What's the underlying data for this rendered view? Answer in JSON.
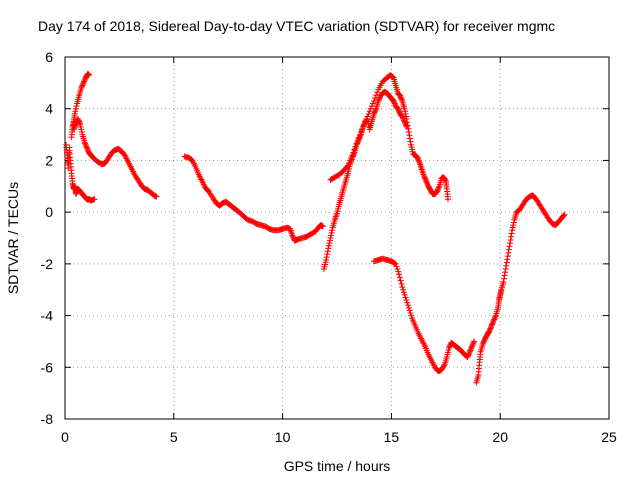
{
  "chart_data": {
    "type": "scatter",
    "title": "Day 174 of 2018, Sidereal Day-to-day VTEC variation (SDTVAR) for receiver mgmc",
    "xlabel": "GPS time / hours",
    "ylabel": "SDTVAR / TECUs",
    "xlim": [
      0,
      25
    ],
    "ylim": [
      -8,
      6
    ],
    "x_ticks": [
      "0",
      "5",
      "10",
      "15",
      "20",
      "25"
    ],
    "y_ticks": [
      "-8",
      "-6",
      "-4",
      "-2",
      "0",
      "2",
      "4",
      "6"
    ],
    "grid": true,
    "marker": "+",
    "color": "#ff0000",
    "series": [
      {
        "name": "seg1",
        "points": [
          [
            0.05,
            2.6
          ],
          [
            0.1,
            2.2
          ],
          [
            0.15,
            1.7
          ],
          [
            0.2,
            2.5
          ],
          [
            0.25,
            2.0
          ],
          [
            0.3,
            1.5
          ],
          [
            0.35,
            1.1
          ],
          [
            0.4,
            0.9
          ],
          [
            0.45,
            1.0
          ],
          [
            0.5,
            0.7
          ],
          [
            0.6,
            0.9
          ],
          [
            0.7,
            0.8
          ],
          [
            0.8,
            0.7
          ],
          [
            0.9,
            0.6
          ],
          [
            1.0,
            0.5
          ],
          [
            1.1,
            0.5
          ],
          [
            1.2,
            0.45
          ],
          [
            1.35,
            0.5
          ]
        ]
      },
      {
        "name": "seg2",
        "points": [
          [
            0.3,
            2.9
          ],
          [
            0.35,
            3.3
          ],
          [
            0.4,
            3.5
          ],
          [
            0.45,
            3.8
          ],
          [
            0.55,
            4.2
          ],
          [
            0.65,
            4.5
          ],
          [
            0.75,
            4.8
          ],
          [
            0.85,
            5.0
          ],
          [
            0.95,
            5.2
          ],
          [
            1.05,
            5.35
          ],
          [
            1.1,
            5.3
          ]
        ]
      },
      {
        "name": "seg3",
        "points": [
          [
            0.4,
            3.2
          ],
          [
            0.5,
            3.4
          ],
          [
            0.6,
            3.6
          ],
          [
            0.7,
            3.4
          ],
          [
            0.8,
            3.0
          ],
          [
            0.9,
            2.7
          ],
          [
            1.0,
            2.5
          ],
          [
            1.1,
            2.3
          ],
          [
            1.2,
            2.2
          ],
          [
            1.3,
            2.1
          ],
          [
            1.5,
            1.95
          ],
          [
            1.7,
            1.85
          ],
          [
            1.85,
            1.9
          ],
          [
            2.0,
            2.1
          ],
          [
            2.15,
            2.3
          ],
          [
            2.3,
            2.4
          ],
          [
            2.45,
            2.45
          ],
          [
            2.6,
            2.35
          ],
          [
            2.75,
            2.2
          ],
          [
            2.9,
            1.95
          ],
          [
            3.05,
            1.7
          ],
          [
            3.2,
            1.45
          ],
          [
            3.35,
            1.25
          ],
          [
            3.5,
            1.05
          ],
          [
            3.65,
            0.9
          ],
          [
            3.8,
            0.85
          ],
          [
            3.95,
            0.75
          ],
          [
            4.1,
            0.65
          ],
          [
            4.2,
            0.6
          ]
        ]
      },
      {
        "name": "seg4",
        "points": [
          [
            5.5,
            2.15
          ],
          [
            5.7,
            2.1
          ],
          [
            5.85,
            2.0
          ],
          [
            6.0,
            1.75
          ],
          [
            6.15,
            1.45
          ],
          [
            6.3,
            1.2
          ],
          [
            6.45,
            0.95
          ],
          [
            6.6,
            0.8
          ],
          [
            6.8,
            0.55
          ],
          [
            6.95,
            0.35
          ],
          [
            7.1,
            0.25
          ],
          [
            7.25,
            0.35
          ],
          [
            7.4,
            0.4
          ],
          [
            7.55,
            0.3
          ],
          [
            7.7,
            0.2
          ],
          [
            7.85,
            0.1
          ],
          [
            8.0,
            0.0
          ],
          [
            8.2,
            -0.15
          ],
          [
            8.4,
            -0.3
          ],
          [
            8.6,
            -0.35
          ],
          [
            8.8,
            -0.45
          ],
          [
            9.0,
            -0.5
          ],
          [
            9.2,
            -0.55
          ],
          [
            9.4,
            -0.65
          ],
          [
            9.6,
            -0.7
          ],
          [
            9.8,
            -0.7
          ],
          [
            10.0,
            -0.65
          ],
          [
            10.2,
            -0.6
          ],
          [
            10.35,
            -0.65
          ],
          [
            10.45,
            -0.9
          ],
          [
            10.55,
            -1.1
          ],
          [
            10.7,
            -1.05
          ],
          [
            10.9,
            -1.0
          ],
          [
            11.1,
            -0.95
          ],
          [
            11.3,
            -0.85
          ],
          [
            11.5,
            -0.75
          ],
          [
            11.65,
            -0.6
          ],
          [
            11.75,
            -0.5
          ],
          [
            11.85,
            -0.55
          ]
        ]
      },
      {
        "name": "seg5",
        "points": [
          [
            11.9,
            -2.2
          ],
          [
            12.0,
            -1.85
          ],
          [
            12.1,
            -1.4
          ],
          [
            12.2,
            -1.0
          ],
          [
            12.3,
            -0.6
          ],
          [
            12.4,
            -0.3
          ],
          [
            12.5,
            -0.05
          ],
          [
            12.6,
            0.3
          ],
          [
            12.7,
            0.6
          ],
          [
            12.8,
            0.9
          ],
          [
            12.9,
            1.2
          ],
          [
            13.0,
            1.5
          ],
          [
            13.1,
            1.85
          ],
          [
            13.2,
            2.1
          ],
          [
            13.3,
            2.3
          ],
          [
            13.4,
            2.6
          ],
          [
            13.5,
            2.8
          ],
          [
            13.6,
            3.0
          ],
          [
            13.7,
            3.3
          ],
          [
            13.8,
            3.5
          ],
          [
            13.9,
            3.6
          ],
          [
            14.0,
            3.2
          ],
          [
            14.1,
            3.5
          ],
          [
            14.2,
            3.8
          ],
          [
            14.3,
            4.0
          ],
          [
            14.4,
            4.3
          ],
          [
            14.5,
            4.5
          ],
          [
            14.6,
            4.6
          ],
          [
            14.7,
            4.65
          ],
          [
            14.8,
            4.6
          ],
          [
            14.9,
            4.5
          ],
          [
            15.0,
            4.4
          ],
          [
            15.1,
            4.3
          ],
          [
            15.2,
            4.1
          ],
          [
            15.3,
            4.0
          ],
          [
            15.4,
            3.8
          ],
          [
            15.5,
            3.7
          ],
          [
            15.6,
            3.5
          ],
          [
            15.7,
            3.3
          ]
        ]
      },
      {
        "name": "seg6",
        "points": [
          [
            12.2,
            1.25
          ],
          [
            12.4,
            1.35
          ],
          [
            12.6,
            1.45
          ],
          [
            12.8,
            1.6
          ],
          [
            13.0,
            1.8
          ],
          [
            13.2,
            2.2
          ],
          [
            13.4,
            2.65
          ],
          [
            13.6,
            3.1
          ],
          [
            13.8,
            3.5
          ],
          [
            14.0,
            3.9
          ],
          [
            14.2,
            4.3
          ],
          [
            14.4,
            4.75
          ],
          [
            14.6,
            5.05
          ],
          [
            14.8,
            5.2
          ],
          [
            14.95,
            5.3
          ],
          [
            15.1,
            5.2
          ],
          [
            15.2,
            4.9
          ],
          [
            15.3,
            4.6
          ],
          [
            15.4,
            4.5
          ],
          [
            15.5,
            4.3
          ],
          [
            15.6,
            4.0
          ],
          [
            15.7,
            3.6
          ],
          [
            15.8,
            3.1
          ],
          [
            15.9,
            2.6
          ],
          [
            16.0,
            2.25
          ],
          [
            16.1,
            2.2
          ],
          [
            16.2,
            2.1
          ],
          [
            16.3,
            1.9
          ],
          [
            16.4,
            1.65
          ],
          [
            16.5,
            1.4
          ],
          [
            16.6,
            1.2
          ],
          [
            16.7,
            1.0
          ],
          [
            16.8,
            0.85
          ],
          [
            16.9,
            0.7
          ],
          [
            17.0,
            0.7
          ],
          [
            17.1,
            0.8
          ],
          [
            17.2,
            1.0
          ],
          [
            17.3,
            1.3
          ],
          [
            17.4,
            1.35
          ],
          [
            17.5,
            1.2
          ],
          [
            17.55,
            0.9
          ],
          [
            17.6,
            0.5
          ]
        ]
      },
      {
        "name": "seg7",
        "points": [
          [
            14.2,
            -1.9
          ],
          [
            14.4,
            -1.85
          ],
          [
            14.6,
            -1.8
          ],
          [
            14.8,
            -1.85
          ],
          [
            15.0,
            -1.9
          ],
          [
            15.2,
            -2.0
          ],
          [
            15.35,
            -2.4
          ],
          [
            15.5,
            -2.9
          ],
          [
            15.65,
            -3.3
          ],
          [
            15.8,
            -3.7
          ],
          [
            15.95,
            -4.1
          ],
          [
            16.1,
            -4.4
          ],
          [
            16.25,
            -4.7
          ],
          [
            16.4,
            -4.95
          ],
          [
            16.55,
            -5.2
          ],
          [
            16.7,
            -5.5
          ],
          [
            16.85,
            -5.75
          ],
          [
            17.0,
            -6.0
          ],
          [
            17.15,
            -6.15
          ],
          [
            17.3,
            -6.1
          ],
          [
            17.45,
            -5.9
          ],
          [
            17.55,
            -5.6
          ],
          [
            17.65,
            -5.25
          ],
          [
            17.75,
            -5.05
          ],
          [
            17.9,
            -5.15
          ],
          [
            18.05,
            -5.25
          ],
          [
            18.2,
            -5.35
          ],
          [
            18.35,
            -5.5
          ],
          [
            18.5,
            -5.6
          ],
          [
            18.6,
            -5.4
          ],
          [
            18.7,
            -5.2
          ],
          [
            18.8,
            -5.0
          ]
        ]
      },
      {
        "name": "seg8",
        "points": [
          [
            18.9,
            -6.6
          ],
          [
            19.0,
            -6.3
          ],
          [
            19.05,
            -5.8
          ],
          [
            19.1,
            -5.4
          ],
          [
            19.2,
            -5.1
          ],
          [
            19.3,
            -4.9
          ],
          [
            19.4,
            -4.75
          ],
          [
            19.5,
            -4.6
          ],
          [
            19.6,
            -4.4
          ],
          [
            19.7,
            -4.2
          ],
          [
            19.8,
            -4.0
          ],
          [
            19.9,
            -3.7
          ],
          [
            19.95,
            -3.4
          ],
          [
            20.0,
            -3.2
          ],
          [
            20.05,
            -3.0
          ],
          [
            20.15,
            -2.7
          ],
          [
            20.25,
            -2.2
          ],
          [
            20.35,
            -1.7
          ],
          [
            20.45,
            -1.2
          ],
          [
            20.55,
            -0.7
          ],
          [
            20.65,
            -0.3
          ],
          [
            20.75,
            0.0
          ],
          [
            20.9,
            0.1
          ],
          [
            21.05,
            0.3
          ],
          [
            21.2,
            0.5
          ],
          [
            21.35,
            0.6
          ],
          [
            21.5,
            0.65
          ],
          [
            21.65,
            0.5
          ],
          [
            21.8,
            0.3
          ],
          [
            21.95,
            0.1
          ],
          [
            22.1,
            -0.1
          ],
          [
            22.25,
            -0.3
          ],
          [
            22.4,
            -0.45
          ],
          [
            22.55,
            -0.5
          ],
          [
            22.7,
            -0.35
          ],
          [
            22.85,
            -0.2
          ],
          [
            22.95,
            -0.1
          ]
        ]
      }
    ]
  }
}
